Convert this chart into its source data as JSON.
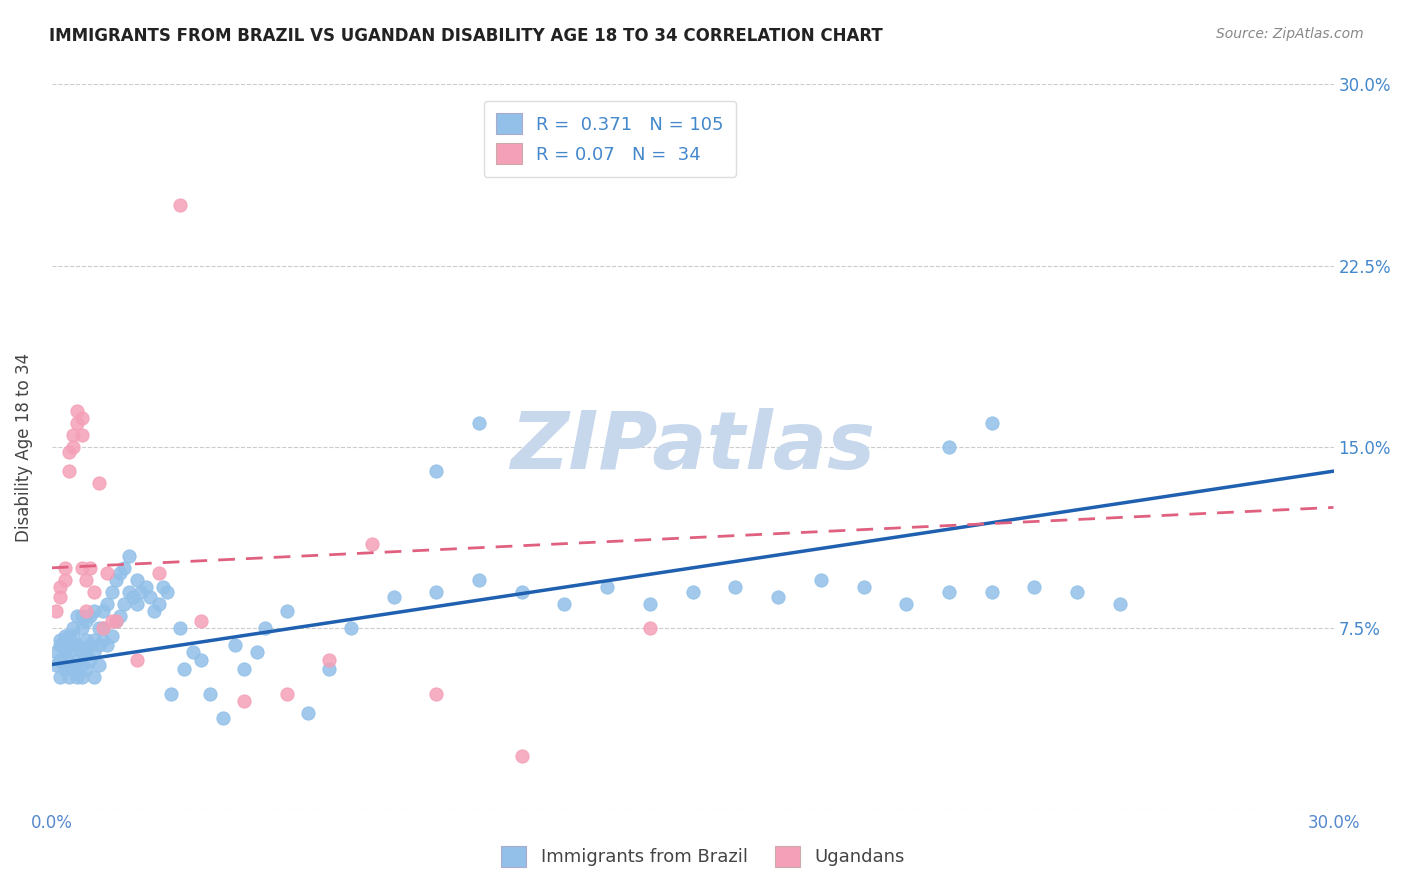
{
  "title": "IMMIGRANTS FROM BRAZIL VS UGANDAN DISABILITY AGE 18 TO 34 CORRELATION CHART",
  "source": "Source: ZipAtlas.com",
  "ylabel": "Disability Age 18 to 34",
  "xlim": [
    0.0,
    0.3
  ],
  "ylim": [
    0.0,
    0.3
  ],
  "brazil_R": 0.371,
  "brazil_N": 105,
  "uganda_R": 0.07,
  "uganda_N": 34,
  "brazil_color": "#92C0E8",
  "uganda_color": "#F4A0B8",
  "brazil_line_color": "#2060B0",
  "uganda_line_color": "#E06080",
  "watermark_text": "ZIPatlas",
  "watermark_color": "#C8D8EC",
  "brazil_line_x0": 0.0,
  "brazil_line_y0": 0.06,
  "brazil_line_x1": 0.3,
  "brazil_line_y1": 0.14,
  "uganda_line_x0": 0.0,
  "uganda_line_y0": 0.1,
  "uganda_line_x1": 0.3,
  "uganda_line_y1": 0.125,
  "brazil_points_x": [
    0.001,
    0.001,
    0.002,
    0.002,
    0.002,
    0.002,
    0.003,
    0.003,
    0.003,
    0.003,
    0.003,
    0.004,
    0.004,
    0.004,
    0.004,
    0.005,
    0.005,
    0.005,
    0.005,
    0.005,
    0.006,
    0.006,
    0.006,
    0.006,
    0.007,
    0.007,
    0.007,
    0.007,
    0.007,
    0.008,
    0.008,
    0.008,
    0.008,
    0.009,
    0.009,
    0.009,
    0.01,
    0.01,
    0.01,
    0.01,
    0.011,
    0.011,
    0.011,
    0.012,
    0.012,
    0.012,
    0.013,
    0.013,
    0.014,
    0.014,
    0.015,
    0.015,
    0.016,
    0.016,
    0.017,
    0.017,
    0.018,
    0.018,
    0.019,
    0.02,
    0.02,
    0.021,
    0.022,
    0.023,
    0.024,
    0.025,
    0.026,
    0.027,
    0.028,
    0.03,
    0.031,
    0.033,
    0.035,
    0.037,
    0.04,
    0.043,
    0.045,
    0.048,
    0.05,
    0.055,
    0.06,
    0.065,
    0.07,
    0.08,
    0.09,
    0.1,
    0.11,
    0.12,
    0.13,
    0.14,
    0.15,
    0.16,
    0.17,
    0.18,
    0.19,
    0.2,
    0.21,
    0.22,
    0.23,
    0.24,
    0.25,
    0.21,
    0.22,
    0.09,
    0.1
  ],
  "brazil_points_y": [
    0.06,
    0.065,
    0.068,
    0.062,
    0.07,
    0.055,
    0.065,
    0.07,
    0.058,
    0.072,
    0.06,
    0.065,
    0.068,
    0.055,
    0.072,
    0.06,
    0.068,
    0.072,
    0.058,
    0.075,
    0.062,
    0.068,
    0.055,
    0.08,
    0.06,
    0.065,
    0.075,
    0.055,
    0.08,
    0.065,
    0.07,
    0.058,
    0.078,
    0.062,
    0.068,
    0.08,
    0.065,
    0.07,
    0.055,
    0.082,
    0.068,
    0.075,
    0.06,
    0.07,
    0.075,
    0.082,
    0.068,
    0.085,
    0.072,
    0.09,
    0.078,
    0.095,
    0.08,
    0.098,
    0.085,
    0.1,
    0.09,
    0.105,
    0.088,
    0.085,
    0.095,
    0.09,
    0.092,
    0.088,
    0.082,
    0.085,
    0.092,
    0.09,
    0.048,
    0.075,
    0.058,
    0.065,
    0.062,
    0.048,
    0.038,
    0.068,
    0.058,
    0.065,
    0.075,
    0.082,
    0.04,
    0.058,
    0.075,
    0.088,
    0.09,
    0.095,
    0.09,
    0.085,
    0.092,
    0.085,
    0.09,
    0.092,
    0.088,
    0.095,
    0.092,
    0.085,
    0.09,
    0.09,
    0.092,
    0.09,
    0.085,
    0.15,
    0.16,
    0.14,
    0.16
  ],
  "uganda_points_x": [
    0.001,
    0.002,
    0.002,
    0.003,
    0.003,
    0.004,
    0.004,
    0.005,
    0.005,
    0.006,
    0.006,
    0.007,
    0.007,
    0.007,
    0.008,
    0.008,
    0.009,
    0.01,
    0.011,
    0.012,
    0.013,
    0.014,
    0.015,
    0.02,
    0.025,
    0.03,
    0.035,
    0.045,
    0.055,
    0.065,
    0.075,
    0.09,
    0.11,
    0.14
  ],
  "uganda_points_y": [
    0.082,
    0.088,
    0.092,
    0.095,
    0.1,
    0.14,
    0.148,
    0.15,
    0.155,
    0.16,
    0.165,
    0.155,
    0.162,
    0.1,
    0.095,
    0.082,
    0.1,
    0.09,
    0.135,
    0.075,
    0.098,
    0.078,
    0.078,
    0.062,
    0.098,
    0.25,
    0.078,
    0.045,
    0.048,
    0.062,
    0.11,
    0.048,
    0.022,
    0.075
  ]
}
